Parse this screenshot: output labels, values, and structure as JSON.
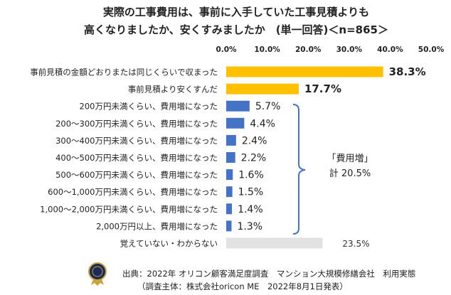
{
  "title_lines": [
    "実際の工事費用は、事前に入手していた工事見積よりも",
    "高くなりましたか、安くすみましたか　(単一回答)＜n=865＞"
  ],
  "colors": {
    "highlight": "#FFC000",
    "increase": "#4472C4",
    "unknown": "#E2E2E2",
    "bracket": "#4472C4"
  },
  "chart_data": {
    "type": "bar",
    "orientation": "horizontal",
    "title": "実際の工事費用は、事前に入手していた工事見積よりも高くなりましたか、安くすみましたか　(単一回答)＜n=865＞",
    "xlim": [
      0,
      50
    ],
    "ticks": [
      "0.0%",
      "10.0%",
      "20.0%",
      "30.0%",
      "40.0%",
      "50.0%"
    ],
    "tick_values": [
      0,
      10,
      20,
      30,
      40,
      50
    ],
    "grid": false,
    "categories": [
      "事前見積の金額どおりまたは同じくらいで収まった",
      "事前見積より安くすんだ",
      "200万円未満くらい、費用増になった",
      "200～300万円未満くらい、費用増になった",
      "300～400万円未満くらい、費用増になった",
      "400～500万円未満くらい、費用増になった",
      "500～600万円未満くらい、費用増になった",
      "600～1,000万円未満くらい、費用増になった",
      "1,000～2,000万円未満くらい、費用増になった",
      "2,000万円以上、費用増になった",
      "覚えていない・わからない"
    ],
    "values": [
      38.3,
      17.7,
      5.7,
      4.4,
      2.4,
      2.2,
      1.6,
      1.5,
      1.4,
      1.3,
      23.5
    ],
    "value_labels": [
      "38.3%",
      "17.7%",
      "5.7%",
      "4.4%",
      "2.4%",
      "2.2%",
      "1.6%",
      "1.5%",
      "1.4%",
      "1.3%",
      "23.5%"
    ],
    "bar_groups": [
      "highlight",
      "highlight",
      "increase",
      "increase",
      "increase",
      "increase",
      "increase",
      "increase",
      "increase",
      "increase",
      "unknown"
    ],
    "annotation": {
      "lines": [
        "「費用増」",
        "計 20.5%"
      ]
    }
  },
  "source": [
    "出典：2022年 オリコン顧客満足度調査　マンション大規模修繕会社　利用実態",
    "（調査主体：株式会社oricon ME　2022年8月1日発表）"
  ]
}
